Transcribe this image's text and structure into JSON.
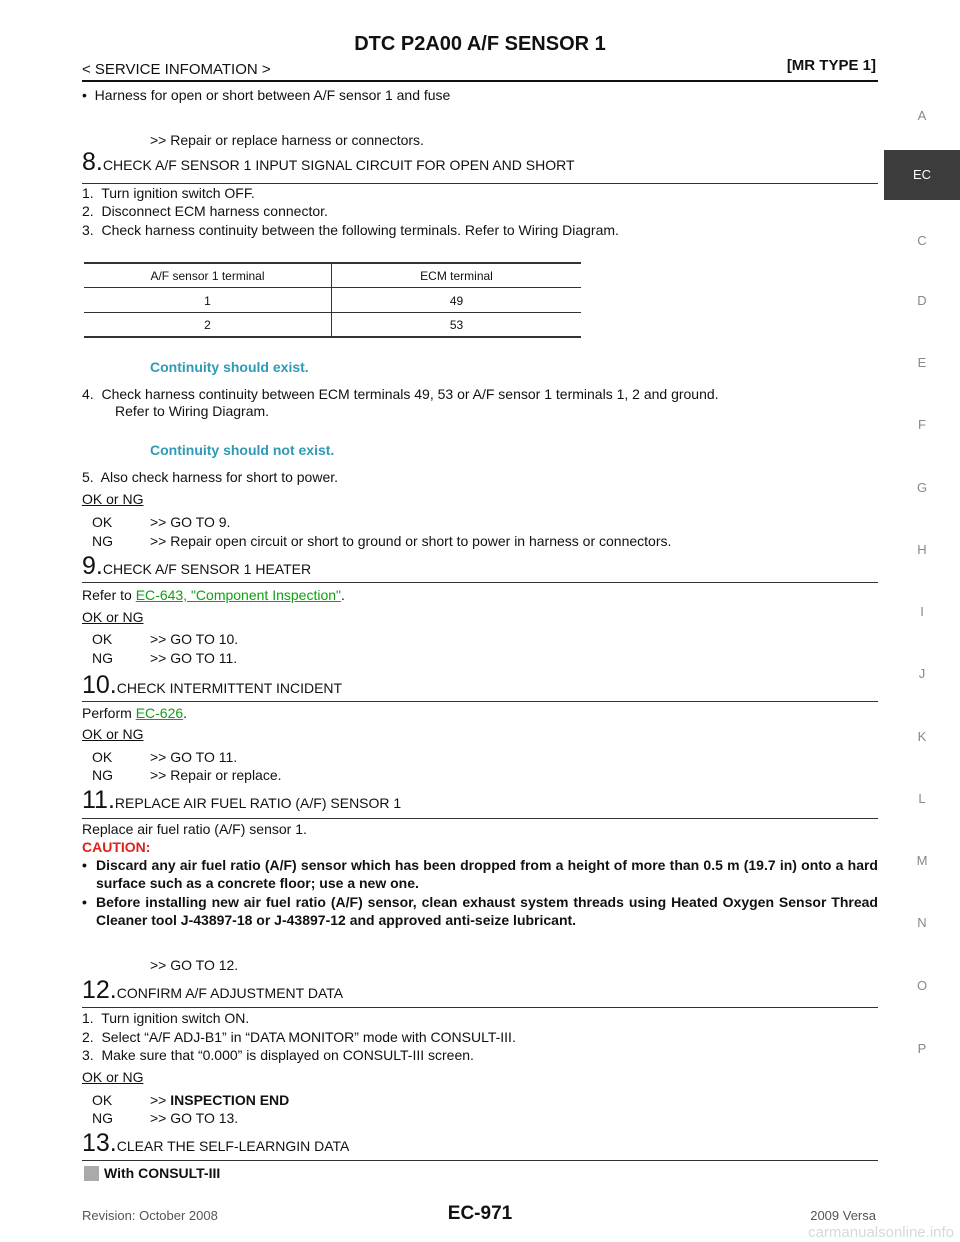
{
  "header": {
    "title": "DTC P2A00 A/F SENSOR 1",
    "section": "< SERVICE INFOMATION >",
    "model": "[MR TYPE 1]"
  },
  "side_tabs": [
    "A",
    "EC",
    "C",
    "D",
    "E",
    "F",
    "G",
    "H",
    "I",
    "J",
    "K",
    "L",
    "M",
    "N",
    "O",
    "P"
  ],
  "intro": {
    "text": "•  Harness for open or short between A/F sensor 1 and fuse",
    "result": ">> Repair or replace harness or connectors."
  },
  "step8": {
    "number": "8.",
    "title": "CHECK A/F SENSOR 1 INPUT SIGNAL CIRCUIT FOR OPEN AND SHORT",
    "items": [
      "1.  Turn ignition switch OFF.",
      "2.  Disconnect ECM harness connector.",
      "3.  Check harness continuity between the following terminals. Refer to Wiring Diagram."
    ],
    "table": {
      "header": [
        "A/F sensor 1 terminal",
        "ECM terminal"
      ],
      "rows": [
        [
          1,
          49
        ],
        [
          2,
          53
        ]
      ]
    },
    "note1": "Continuity should exist.",
    "item4": [
      "4.  Check harness continuity between ECM terminals 49, 53 or A/F sensor 1 terminals 1, 2 and ground.",
      "Refer to Wiring Diagram."
    ],
    "note2": "Continuity should not exist.",
    "item5": "5.  Also check harness for short to power.",
    "ok_ng": "OK or NG",
    "results": [
      [
        "OK",
        ">> GO TO 9."
      ],
      [
        "NG",
        ">> Repair open circuit or short to ground or short to power in harness or connectors."
      ]
    ]
  },
  "step9": {
    "number": "9.",
    "title": "CHECK A/F SENSOR 1 HEATER",
    "refer": [
      "Refer to ",
      "EC-643, \"Component Inspection\"",
      "."
    ],
    "ok_ng": "OK or NG",
    "results": [
      [
        "OK",
        ">> GO TO 10."
      ],
      [
        "NG",
        ">> GO TO 11."
      ]
    ]
  },
  "step10": {
    "number": "10.",
    "title": "CHECK INTERMITTENT INCIDENT",
    "perform": [
      "Perform ",
      "EC-626",
      "."
    ],
    "ok_ng": "OK or NG",
    "results": [
      [
        "OK",
        ">> GO TO 11."
      ],
      [
        "NG",
        ">> Repair or replace."
      ]
    ]
  },
  "step11": {
    "number": "11.",
    "title": "REPLACE AIR FUEL RATIO (A/F) SENSOR 1",
    "text": "Replace air fuel ratio (A/F) sensor 1.",
    "caution": "CAUTION:",
    "bullets": [
      "Discard any air fuel ratio (A/F) sensor which has been dropped from a height of more than 0.5 m (19.7 in) onto a hard surface such as a concrete floor; use a new one.",
      "Before installing new air fuel ratio (A/F) sensor, clean exhaust system threads using Heated Oxygen Sensor Thread Cleaner tool J-43897-18 or J-43897-12 and approved anti-seize lubricant."
    ],
    "result": ">> GO TO 12."
  },
  "step12": {
    "number": "12.",
    "title": "CONFIRM A/F ADJUSTMENT DATA",
    "items": [
      "1.  Turn ignition switch ON.",
      "2.  Select “A/F ADJ-B1” in “DATA MONITOR” mode with CONSULT-III.",
      "3.  Make sure that “0.000” is displayed on CONSULT-III screen."
    ],
    "ok_ng": "OK or NG",
    "results": [
      [
        "OK",
        ">> ",
        "INSPECTION END"
      ],
      [
        "NG",
        ">> GO TO 13."
      ]
    ]
  },
  "step13": {
    "number": "13.",
    "title": "CLEAR THE SELF-LEARNGIN DATA",
    "with": "With CONSULT-III"
  },
  "footer": {
    "revision": "Revision: October 2008",
    "page": "EC-971",
    "model": "2009 Versa",
    "watermark": "carmanualsonline.info"
  }
}
